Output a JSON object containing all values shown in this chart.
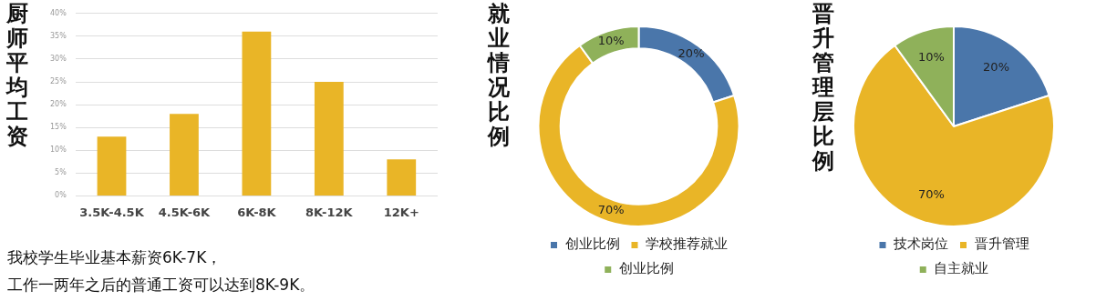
{
  "chart_data": [
    {
      "type": "bar",
      "title": "厨师平均工资",
      "categories": [
        "3.5K-4.5K",
        "4.5K-6K",
        "6K-8K",
        "8K-12K",
        "12K+"
      ],
      "values": [
        13,
        18,
        36,
        25,
        8
      ],
      "color": "#e9b527",
      "ylim": [
        0,
        40
      ],
      "yticks": [
        {
          "value": 0,
          "label": "0%"
        },
        {
          "value": 5,
          "label": "5%"
        },
        {
          "value": 10,
          "label": "10%"
        },
        {
          "value": 15,
          "label": "15%"
        },
        {
          "value": 20,
          "label": "20%"
        },
        {
          "value": 25,
          "label": "25%"
        },
        {
          "value": 30,
          "label": "30%"
        },
        {
          "value": 35,
          "label": "35%"
        },
        {
          "value": 40,
          "label": "40%"
        }
      ],
      "grid": "y",
      "legend": false,
      "annotations": [
        "我校学生毕业基本薪资6K-7K，",
        "工作一两年之后的普通工资可以达到8K-9K。"
      ]
    },
    {
      "type": "donut",
      "title": "就业情况比例",
      "categories": [
        "创业比例",
        "学校推荐就业",
        "创业比例"
      ],
      "values": [
        20,
        70,
        10
      ],
      "colors": [
        "#4a76aa",
        "#e9b527",
        "#8fb15a"
      ],
      "value_labels": [
        "20%",
        "70%",
        "10%"
      ],
      "legend": "bottom"
    },
    {
      "type": "pie",
      "title": "晋升管理层比例",
      "categories": [
        "技术岗位",
        "晋升管理",
        "自主就业"
      ],
      "values": [
        20,
        70,
        10
      ],
      "colors": [
        "#4a76aa",
        "#e9b527",
        "#8fb15a"
      ],
      "value_labels": [
        "20%",
        "70%",
        "10%"
      ],
      "legend": "bottom"
    }
  ]
}
